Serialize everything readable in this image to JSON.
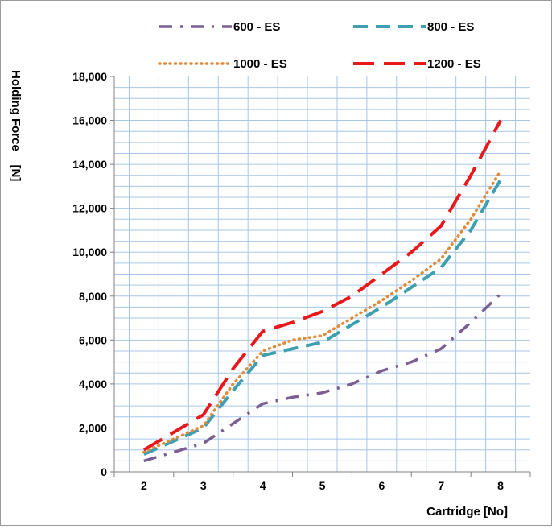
{
  "chart_data": {
    "type": "line",
    "xlabel": "Cartridge [No]",
    "ylabel": "Holding Force    [N]",
    "categories": [
      "2",
      "3",
      "4",
      "5",
      "6",
      "7",
      "8"
    ],
    "ylim": [
      0,
      18000
    ],
    "yticks": [
      0,
      2000,
      4000,
      6000,
      8000,
      10000,
      12000,
      14000,
      16000,
      18000
    ],
    "ytick_labels": [
      "0",
      "2,000",
      "4,000",
      "6,000",
      "8,000",
      "10,000",
      "12,000",
      "14,000",
      "16,000",
      "18,000"
    ],
    "grid": true,
    "legend_position": "top",
    "series": [
      {
        "name": "600 - ES",
        "color": "#7b5e92",
        "dash": "dash-dot",
        "x": [
          2,
          2.5,
          3,
          3.5,
          4,
          4.5,
          5,
          5.5,
          6,
          6.5,
          7,
          7.5,
          8
        ],
        "values": [
          500,
          900,
          1300,
          2200,
          3100,
          3400,
          3600,
          4000,
          4600,
          5000,
          5600,
          6800,
          8100
        ]
      },
      {
        "name": "800 - ES",
        "color": "#3e9fb0",
        "dash": "dash",
        "x": [
          2,
          2.5,
          3,
          3.5,
          4,
          4.5,
          5,
          5.5,
          6,
          6.5,
          7,
          7.5,
          8
        ],
        "values": [
          800,
          1400,
          2000,
          3700,
          5300,
          5600,
          5900,
          6700,
          7500,
          8400,
          9300,
          11000,
          13300
        ]
      },
      {
        "name": "1000 - ES",
        "color": "#e08b3a",
        "dash": "dot",
        "x": [
          2,
          2.5,
          3,
          3.5,
          4,
          4.5,
          5,
          5.5,
          6,
          6.5,
          7,
          7.5,
          8
        ],
        "values": [
          900,
          1500,
          2100,
          4000,
          5500,
          6000,
          6200,
          7000,
          7800,
          8700,
          9700,
          11500,
          13700
        ]
      },
      {
        "name": "1200 - ES",
        "color": "#e8191a",
        "dash": "long-dash",
        "x": [
          2,
          2.5,
          3,
          3.5,
          4,
          4.5,
          5,
          5.5,
          6,
          6.5,
          7,
          7.5,
          8
        ],
        "values": [
          1000,
          1800,
          2600,
          4700,
          6400,
          6800,
          7300,
          8000,
          9000,
          10000,
          11200,
          13500,
          16000
        ]
      }
    ]
  }
}
